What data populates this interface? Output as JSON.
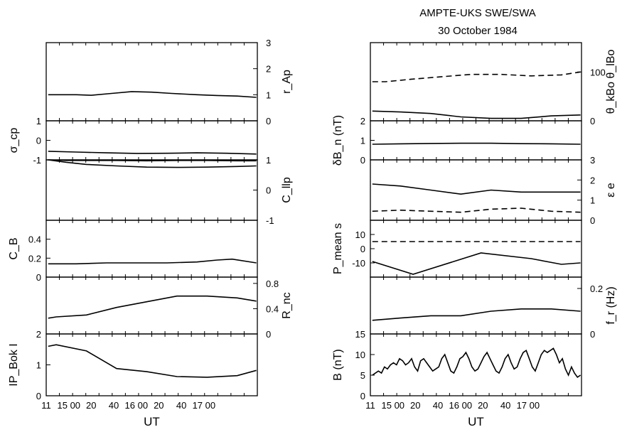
{
  "title": [
    "AMPTE-UKS SWE/SWA",
    "30 October 1984"
  ],
  "x_tick_labels": [
    "11",
    "15 00",
    "20",
    "40",
    "16 00",
    "20",
    "40",
    "17 00"
  ],
  "x_label": "UT",
  "chart_data": [
    {
      "column": "left",
      "panels": [
        {
          "id": "rAp",
          "type": "line",
          "x_range_min": [
            660,
            1080
          ],
          "axis_side": "right",
          "label": "r_Ap",
          "ylim": [
            0,
            3
          ],
          "yticks": [
            0,
            1,
            2,
            3
          ],
          "ytick_labels": [
            "0",
            "1",
            "2",
            "3"
          ],
          "series": [
            {
              "style": "solid",
              "x": [
                664,
                720,
                750,
                790,
                830,
                870,
                910,
                960,
                1000,
                1040,
                1078
              ],
              "y": [
                1.0,
                1.0,
                0.98,
                1.05,
                1.12,
                1.1,
                1.05,
                1.0,
                0.97,
                0.95,
                0.9
              ]
            }
          ]
        },
        {
          "id": "sigma_cp",
          "type": "line",
          "x_range_min": [
            660,
            1080
          ],
          "axis_side": "left",
          "label": "σ_cp",
          "ylim": [
            -1,
            1
          ],
          "yticks": [
            -1,
            0,
            1
          ],
          "ytick_labels": [
            "-1",
            "0",
            "1"
          ],
          "series": [
            {
              "style": "solid",
              "x": [
                664,
                720,
                780,
                840,
                900,
                960,
                1020,
                1078
              ],
              "y": [
                -0.56,
                -0.6,
                -0.64,
                -0.67,
                -0.66,
                -0.64,
                -0.66,
                -0.7
              ]
            }
          ]
        },
        {
          "id": "C_llp",
          "type": "line",
          "x_range_min": [
            660,
            1080
          ],
          "axis_side": "right",
          "label": "C_llp",
          "ylim": [
            -1,
            1
          ],
          "yticks": [
            -1,
            0,
            1
          ],
          "ytick_labels": [
            "-1",
            "0",
            "1"
          ],
          "series": [
            {
              "style": "solid",
              "x": [
                664,
                700,
                740,
                800,
                860,
                920,
                980,
                1040,
                1078
              ],
              "y": [
                1.0,
                0.98,
                0.98,
                0.98,
                0.97,
                0.98,
                0.98,
                0.97,
                0.97
              ]
            },
            {
              "style": "solid",
              "x": [
                664,
                700,
                740,
                800,
                860,
                920,
                980,
                1040,
                1078
              ],
              "y": [
                1.0,
                0.92,
                0.85,
                0.8,
                0.76,
                0.75,
                0.76,
                0.78,
                0.8
              ]
            }
          ]
        },
        {
          "id": "C_B",
          "type": "line",
          "x_range_min": [
            660,
            1080
          ],
          "axis_side": "left",
          "label": "C_B",
          "ylim": [
            0,
            0.6
          ],
          "yticks": [
            0,
            0.2,
            0.4
          ],
          "ytick_labels": [
            "0",
            "0.2",
            "0.4"
          ],
          "series": [
            {
              "style": "solid",
              "x": [
                664,
                720,
                780,
                840,
                900,
                960,
                1000,
                1030,
                1078
              ],
              "y": [
                0.14,
                0.14,
                0.15,
                0.15,
                0.15,
                0.16,
                0.18,
                0.19,
                0.15
              ]
            }
          ]
        },
        {
          "id": "R_nc",
          "type": "line",
          "x_range_min": [
            660,
            1080
          ],
          "axis_side": "right",
          "label": "R_nc",
          "ylim": [
            0,
            0.9
          ],
          "yticks": [
            0,
            0.4,
            0.8
          ],
          "ytick_labels": [
            "0",
            "0.4",
            "0.8"
          ],
          "series": [
            {
              "style": "solid",
              "x": [
                664,
                680,
                740,
                800,
                860,
                920,
                980,
                1040,
                1078
              ],
              "y": [
                0.25,
                0.27,
                0.3,
                0.42,
                0.51,
                0.6,
                0.6,
                0.57,
                0.52
              ]
            }
          ]
        },
        {
          "id": "P_Bok",
          "type": "line",
          "x_range_min": [
            660,
            1080
          ],
          "axis_side": "left",
          "label": "IP_Bok I",
          "ylim": [
            0,
            2
          ],
          "yticks": [
            0,
            1,
            2
          ],
          "ytick_labels": [
            "0",
            "1",
            "2"
          ],
          "series": [
            {
              "style": "solid",
              "x": [
                664,
                680,
                740,
                800,
                860,
                920,
                980,
                1040,
                1078
              ],
              "y": [
                1.6,
                1.65,
                1.45,
                0.88,
                0.78,
                0.62,
                0.6,
                0.65,
                0.82
              ]
            }
          ]
        }
      ]
    },
    {
      "column": "right",
      "panels": [
        {
          "id": "theta",
          "type": "line",
          "x_range_min": [
            660,
            1080
          ],
          "axis_side": "right",
          "label": "θ_kBo θ_lBo",
          "ylim": [
            0,
            160
          ],
          "yticks": [
            0,
            100
          ],
          "ytick_labels": [
            "0",
            "100"
          ],
          "series": [
            {
              "style": "dashed",
              "x": [
                664,
                690,
                740,
                800,
                860,
                920,
                980,
                1040,
                1078
              ],
              "y": [
                80,
                80,
                85,
                90,
                95,
                95,
                92,
                94,
                100
              ]
            },
            {
              "style": "solid",
              "x": [
                664,
                720,
                780,
                840,
                900,
                960,
                1020,
                1078
              ],
              "y": [
                20,
                18,
                15,
                8,
                5,
                5,
                10,
                12
              ]
            }
          ]
        },
        {
          "id": "dBn",
          "type": "line",
          "x_range_min": [
            660,
            1080
          ],
          "axis_side": "left",
          "label": "δB_n (nT)",
          "ylim": [
            0,
            2
          ],
          "yticks": [
            0,
            1,
            2
          ],
          "ytick_labels": [
            "0",
            "1",
            "2"
          ],
          "series": [
            {
              "style": "solid",
              "x": [
                664,
                720,
                780,
                840,
                900,
                960,
                1020,
                1078
              ],
              "y": [
                0.8,
                0.82,
                0.84,
                0.85,
                0.85,
                0.83,
                0.82,
                0.8
              ]
            }
          ]
        },
        {
          "id": "eps_e",
          "type": "line",
          "x_range_min": [
            660,
            1080
          ],
          "axis_side": "right",
          "label": "ε e",
          "ylim": [
            0,
            3
          ],
          "yticks": [
            0,
            1,
            2,
            3
          ],
          "ytick_labels": [
            "0",
            "1",
            "2",
            "3"
          ],
          "series": [
            {
              "style": "solid",
              "x": [
                664,
                720,
                780,
                840,
                900,
                960,
                1020,
                1078
              ],
              "y": [
                1.8,
                1.7,
                1.5,
                1.3,
                1.5,
                1.4,
                1.4,
                1.4
              ]
            },
            {
              "style": "dashed",
              "x": [
                664,
                720,
                780,
                840,
                900,
                960,
                1020,
                1078
              ],
              "y": [
                0.45,
                0.5,
                0.45,
                0.4,
                0.55,
                0.6,
                0.45,
                0.4
              ]
            }
          ]
        },
        {
          "id": "P_mean",
          "type": "line",
          "x_range_min": [
            660,
            1080
          ],
          "axis_side": "left",
          "label": "P_mean s",
          "ylim": [
            -20,
            20
          ],
          "yticks": [
            -10,
            0,
            10
          ],
          "ytick_labels": [
            "-10",
            "0",
            "10"
          ],
          "series": [
            {
              "style": "dashed",
              "x": [
                664,
                720,
                780,
                840,
                900,
                960,
                1020,
                1078
              ],
              "y": [
                5,
                5,
                5,
                5,
                5,
                5,
                5,
                5
              ]
            },
            {
              "style": "solid",
              "x": [
                664,
                745,
                880,
                980,
                1040,
                1078
              ],
              "y": [
                -9,
                -18,
                -3,
                -7,
                -11,
                -10
              ]
            }
          ]
        },
        {
          "id": "f_r",
          "type": "line",
          "x_range_min": [
            660,
            1080
          ],
          "axis_side": "right",
          "label": "f_r (Hz)",
          "ylim": [
            0,
            0.25
          ],
          "yticks": [
            0,
            0.2
          ],
          "ytick_labels": [
            "0",
            "0.2"
          ],
          "series": [
            {
              "style": "solid",
              "x": [
                664,
                720,
                780,
                840,
                900,
                960,
                1020,
                1078
              ],
              "y": [
                0.06,
                0.07,
                0.08,
                0.08,
                0.1,
                0.11,
                0.11,
                0.1
              ]
            }
          ]
        },
        {
          "id": "B",
          "type": "line",
          "x_range_min": [
            660,
            1080
          ],
          "axis_side": "left",
          "label": "B (nT)",
          "ylim": [
            0,
            15
          ],
          "yticks": [
            0,
            5,
            10,
            15
          ],
          "ytick_labels": [
            "0",
            "5",
            "10",
            "15"
          ],
          "series": [
            {
              "style": "solid",
              "x": [
                664,
                670,
                676,
                682,
                688,
                694,
                700,
                706,
                712,
                718,
                724,
                730,
                736,
                742,
                748,
                754,
                760,
                766,
                772,
                778,
                784,
                790,
                796,
                802,
                808,
                814,
                820,
                826,
                832,
                838,
                844,
                850,
                856,
                862,
                868,
                874,
                880,
                886,
                892,
                898,
                904,
                910,
                916,
                922,
                928,
                934,
                940,
                946,
                952,
                958,
                964,
                970,
                976,
                982,
                988,
                994,
                1000,
                1006,
                1012,
                1018,
                1024,
                1030,
                1036,
                1042,
                1048,
                1054,
                1060,
                1066,
                1072,
                1078
              ],
              "y": [
                5,
                5.5,
                6,
                5.5,
                7,
                6.5,
                7.5,
                8,
                7.5,
                9,
                8.5,
                7.5,
                8,
                9,
                7,
                6,
                8.5,
                9,
                8,
                7,
                6,
                6.5,
                7,
                9,
                10,
                8,
                6,
                5.5,
                7,
                9,
                9.5,
                10.5,
                9,
                7,
                6,
                6.5,
                8,
                9.5,
                10.5,
                9,
                7.5,
                6,
                5.5,
                7,
                9,
                10,
                8,
                6.5,
                7,
                9,
                10.5,
                11,
                9,
                7,
                6,
                8,
                10,
                11,
                10.5,
                11,
                11.5,
                10,
                8,
                9,
                6.5,
                5,
                7,
                5.5,
                4.5,
                5
              ]
            }
          ]
        }
      ]
    }
  ]
}
